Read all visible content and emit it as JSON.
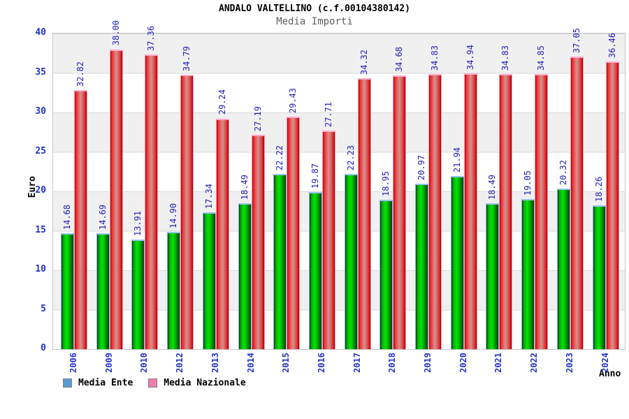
{
  "header": {
    "title": "ANDALO VALTELLINO (c.f.00104380142)",
    "subtitle": "Media Importi"
  },
  "chart_data": {
    "type": "bar",
    "title": "ANDALO VALTELLINO (c.f.00104380142)",
    "subtitle": "Media Importi",
    "xlabel": "Anno",
    "ylabel": "Euro",
    "ylim": [
      0,
      40
    ],
    "yticks": [
      0,
      5,
      10,
      15,
      20,
      25,
      30,
      35,
      40
    ],
    "grid": "horizontal-bands-every-5",
    "legend_position": "bottom-left",
    "categories": [
      "2006",
      "2009",
      "2010",
      "2012",
      "2013",
      "2014",
      "2015",
      "2016",
      "2017",
      "2018",
      "2019",
      "2020",
      "2021",
      "2022",
      "2023",
      "2024"
    ],
    "series": [
      {
        "name": "Media Ente",
        "legend_color": "#5B9BD5",
        "bar_color": "#00CC00",
        "values": [
          14.68,
          14.69,
          13.91,
          14.9,
          17.34,
          18.49,
          22.22,
          19.87,
          22.23,
          18.95,
          20.97,
          21.94,
          18.49,
          19.05,
          20.32,
          18.26
        ]
      },
      {
        "name": "Media Nazionale",
        "legend_color": "#EE7FAE",
        "bar_color": "#E03030",
        "values": [
          32.82,
          38.0,
          37.36,
          34.79,
          29.24,
          27.19,
          29.43,
          27.71,
          34.32,
          34.68,
          34.83,
          34.94,
          34.83,
          34.85,
          37.05,
          36.46
        ]
      }
    ],
    "value_label_color": "#2222BB",
    "axis_tick_color": "#2233CC"
  }
}
